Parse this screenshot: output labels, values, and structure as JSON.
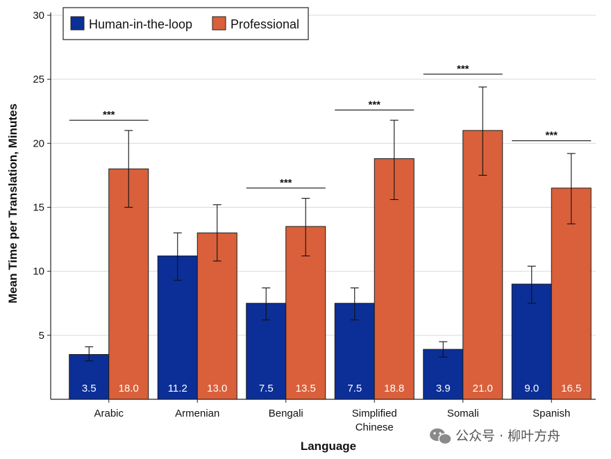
{
  "chart_data": {
    "type": "bar",
    "title": "",
    "xlabel": "Language",
    "ylabel": "Mean Time per Translation, Minutes",
    "ylim": [
      0,
      30
    ],
    "yticks": [
      5,
      10,
      15,
      20,
      25,
      30
    ],
    "grid": true,
    "legend_position": "top-left",
    "categories": [
      "Arabic",
      "Armenian",
      "Bengali",
      "Simplified Chinese",
      "Somali",
      "Spanish"
    ],
    "category_lines": [
      [
        "Arabic"
      ],
      [
        "Armenian"
      ],
      [
        "Bengali"
      ],
      [
        "Simplified",
        "Chinese"
      ],
      [
        "Somali"
      ],
      [
        "Spanish"
      ]
    ],
    "series": [
      {
        "name": "Human-in-the-loop",
        "color": "#0b2f96",
        "values": [
          3.5,
          11.2,
          7.5,
          7.5,
          3.9,
          9.0
        ],
        "value_labels": [
          "3.5",
          "11.2",
          "7.5",
          "7.5",
          "3.9",
          "9.0"
        ],
        "error_low": [
          3.0,
          9.3,
          6.2,
          6.2,
          3.3,
          7.5
        ],
        "error_high": [
          4.1,
          13.0,
          8.7,
          8.7,
          4.5,
          10.4
        ]
      },
      {
        "name": "Professional",
        "color": "#d9603b",
        "values": [
          18.0,
          13.0,
          13.5,
          18.8,
          21.0,
          16.5
        ],
        "value_labels": [
          "18.0",
          "13.0",
          "13.5",
          "18.8",
          "21.0",
          "16.5"
        ],
        "error_low": [
          15.0,
          10.8,
          11.2,
          15.6,
          17.5,
          13.7
        ],
        "error_high": [
          21.0,
          15.2,
          15.7,
          21.8,
          24.4,
          19.2
        ]
      }
    ],
    "significance": [
      {
        "category": "Arabic",
        "label": "***",
        "y": 21.8
      },
      {
        "category": "Bengali",
        "label": "***",
        "y": 16.5
      },
      {
        "category": "Simplified Chinese",
        "label": "***",
        "y": 22.6
      },
      {
        "category": "Somali",
        "label": "***",
        "y": 25.4
      },
      {
        "category": "Spanish",
        "label": "***",
        "y": 20.2
      }
    ]
  },
  "watermark": {
    "text": "公众号 · 柳叶方舟",
    "icon": "wechat-icon"
  }
}
